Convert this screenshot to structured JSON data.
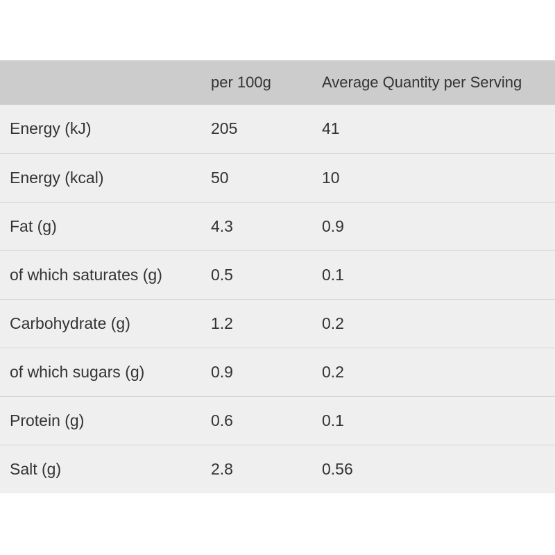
{
  "table": {
    "headers": [
      "",
      "per 100g",
      "Average Quantity per Serving"
    ],
    "rows": [
      [
        "Energy (kJ)",
        "205",
        "41"
      ],
      [
        "Energy (kcal)",
        "50",
        "10"
      ],
      [
        "Fat (g)",
        "4.3",
        "0.9"
      ],
      [
        "of which saturates (g)",
        "0.5",
        "0.1"
      ],
      [
        "Carbohydrate (g)",
        "1.2",
        "0.2"
      ],
      [
        "of which sugars (g)",
        "0.9",
        "0.2"
      ],
      [
        "Protein (g)",
        "0.6",
        "0.1"
      ],
      [
        "Salt (g)",
        "2.8",
        "0.56"
      ]
    ]
  }
}
